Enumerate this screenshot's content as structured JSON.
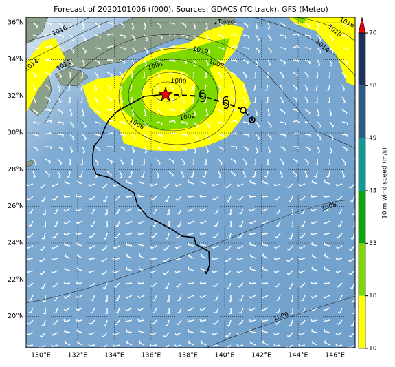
{
  "title": "Forecast of 2020101006 (f000), Sources: GDACS (TC track), GFS (Meteo)",
  "map": {
    "lonlim": [
      129.2,
      147.1
    ],
    "latlim": [
      18.3,
      36.3
    ],
    "lon_ticks": [
      {
        "value": 130,
        "label": "130°E"
      },
      {
        "value": 132,
        "label": "132°E"
      },
      {
        "value": 134,
        "label": "134°E"
      },
      {
        "value": 136,
        "label": "136°E"
      },
      {
        "value": 138,
        "label": "138°E"
      },
      {
        "value": 140,
        "label": "140°E"
      },
      {
        "value": 142,
        "label": "142°E"
      },
      {
        "value": 144,
        "label": "144°E"
      },
      {
        "value": 146,
        "label": "146°E"
      }
    ],
    "lat_ticks": [
      {
        "value": 20,
        "label": "20°N"
      },
      {
        "value": 22,
        "label": "22°N"
      },
      {
        "value": 24,
        "label": "24°N"
      },
      {
        "value": 26,
        "label": "26°N"
      },
      {
        "value": 28,
        "label": "28°N"
      },
      {
        "value": 30,
        "label": "30°N"
      },
      {
        "value": 32,
        "label": "32°N"
      },
      {
        "value": 34,
        "label": "34°N"
      },
      {
        "value": 36,
        "label": "36°N"
      }
    ],
    "place_labels": [
      "Tokyo"
    ],
    "isobar_labels": [
      1016,
      1014,
      1012,
      1010,
      1008,
      1004,
      1000,
      1002,
      1006,
      1016,
      1014,
      1016,
      1008,
      1006
    ]
  },
  "colorbar": {
    "label": "10 m wind speed (m/s)",
    "ticks": [
      10,
      18,
      33,
      43,
      49,
      58,
      70
    ],
    "colors": [
      "#ffff00",
      "#7fd900",
      "#08a808",
      "#0f9a9a",
      "#2b5c85",
      "#1f2f5e"
    ],
    "extend_color": "#e8000b"
  }
}
